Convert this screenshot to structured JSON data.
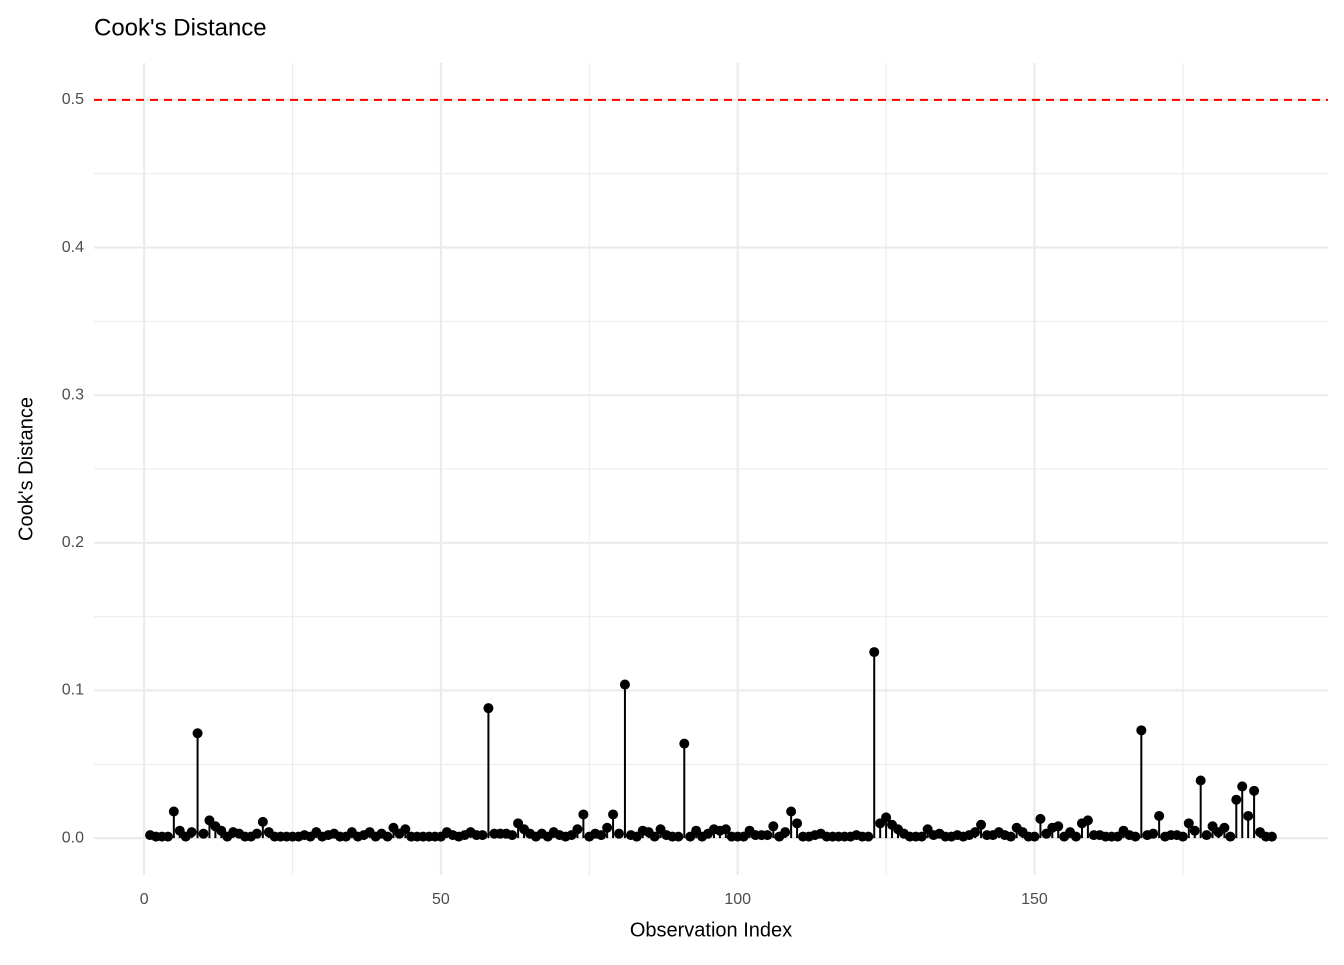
{
  "chart_data": {
    "type": "lollipop",
    "title": "Cook's Distance",
    "xlabel": "Observation Index",
    "ylabel": "Cook's Distance",
    "x": [
      1,
      2,
      3,
      4,
      5,
      6,
      7,
      8,
      9,
      10,
      11,
      12,
      13,
      14,
      15,
      16,
      17,
      18,
      19,
      20,
      21,
      22,
      23,
      24,
      25,
      26,
      27,
      28,
      29,
      30,
      31,
      32,
      33,
      34,
      35,
      36,
      37,
      38,
      39,
      40,
      41,
      42,
      43,
      44,
      45,
      46,
      47,
      48,
      49,
      50,
      51,
      52,
      53,
      54,
      55,
      56,
      57,
      58,
      59,
      60,
      61,
      62,
      63,
      64,
      65,
      66,
      67,
      68,
      69,
      70,
      71,
      72,
      73,
      74,
      75,
      76,
      77,
      78,
      79,
      80,
      81,
      82,
      83,
      84,
      85,
      86,
      87,
      88,
      89,
      90,
      91,
      92,
      93,
      94,
      95,
      96,
      97,
      98,
      99,
      100,
      101,
      102,
      103,
      104,
      105,
      106,
      107,
      108,
      109,
      110,
      111,
      112,
      113,
      114,
      115,
      116,
      117,
      118,
      119,
      120,
      121,
      122,
      123,
      124,
      125,
      126,
      127,
      128,
      129,
      130,
      131,
      132,
      133,
      134,
      135,
      136,
      137,
      138,
      139,
      140,
      141,
      142,
      143,
      144,
      145,
      146,
      147,
      148,
      149,
      150,
      151,
      152,
      153,
      154,
      155,
      156,
      157,
      158,
      159,
      160,
      161,
      162,
      163,
      164,
      165,
      166,
      167,
      168,
      169,
      170,
      171,
      172,
      173,
      174,
      175,
      176,
      177,
      178,
      179,
      180,
      181,
      182,
      183,
      184,
      185,
      186,
      187,
      188,
      189,
      190
    ],
    "values": [
      0.002,
      0.001,
      0.001,
      0.001,
      0.018,
      0.005,
      0.001,
      0.004,
      0.071,
      0.003,
      0.012,
      0.008,
      0.005,
      0.001,
      0.004,
      0.003,
      0.001,
      0.001,
      0.003,
      0.011,
      0.004,
      0.001,
      0.001,
      0.001,
      0.001,
      0.001,
      0.002,
      0.001,
      0.004,
      0.001,
      0.002,
      0.003,
      0.001,
      0.001,
      0.004,
      0.001,
      0.002,
      0.004,
      0.001,
      0.003,
      0.001,
      0.007,
      0.003,
      0.006,
      0.001,
      0.001,
      0.001,
      0.001,
      0.001,
      0.001,
      0.004,
      0.002,
      0.001,
      0.002,
      0.004,
      0.002,
      0.002,
      0.088,
      0.003,
      0.003,
      0.003,
      0.002,
      0.01,
      0.006,
      0.003,
      0.001,
      0.003,
      0.001,
      0.004,
      0.002,
      0.001,
      0.002,
      0.006,
      0.016,
      0.001,
      0.003,
      0.002,
      0.007,
      0.016,
      0.003,
      0.104,
      0.002,
      0.001,
      0.005,
      0.004,
      0.001,
      0.006,
      0.002,
      0.001,
      0.001,
      0.064,
      0.001,
      0.005,
      0.001,
      0.003,
      0.006,
      0.005,
      0.006,
      0.001,
      0.001,
      0.001,
      0.005,
      0.002,
      0.002,
      0.002,
      0.008,
      0.001,
      0.004,
      0.018,
      0.01,
      0.001,
      0.001,
      0.002,
      0.003,
      0.001,
      0.001,
      0.001,
      0.001,
      0.001,
      0.002,
      0.001,
      0.001,
      0.126,
      0.01,
      0.014,
      0.009,
      0.006,
      0.003,
      0.001,
      0.001,
      0.001,
      0.006,
      0.002,
      0.003,
      0.001,
      0.001,
      0.002,
      0.001,
      0.002,
      0.004,
      0.009,
      0.002,
      0.002,
      0.004,
      0.002,
      0.001,
      0.007,
      0.004,
      0.001,
      0.001,
      0.013,
      0.003,
      0.007,
      0.008,
      0.001,
      0.004,
      0.001,
      0.01,
      0.012,
      0.002,
      0.002,
      0.001,
      0.001,
      0.001,
      0.005,
      0.002,
      0.001,
      0.073,
      0.002,
      0.003,
      0.015,
      0.001,
      0.002,
      0.002,
      0.001,
      0.01,
      0.005,
      0.039,
      0.002,
      0.008,
      0.004,
      0.007,
      0.001,
      0.026,
      0.035,
      0.015,
      0.032,
      0.004,
      0.001,
      0.001
    ],
    "color": "#000000",
    "threshold": 0.5,
    "threshold_color": "#ff0000",
    "xlim": [
      -8.45,
      199.45
    ],
    "xticks": [
      0,
      50,
      100,
      150
    ],
    "xminorticks": [
      25,
      75,
      125,
      175
    ],
    "ylim": [
      -0.025,
      0.525
    ],
    "yticks": [
      {
        "value": 0,
        "label": "0.0"
      },
      0.1,
      0.2,
      0.3,
      0.4,
      0.5
    ],
    "yminorticks": [
      0.05,
      0.15,
      0.25,
      0.35,
      0.45
    ],
    "grid": true
  }
}
